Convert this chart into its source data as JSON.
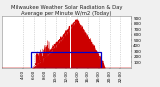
{
  "title": "Milwaukee Weather Solar Radiation & Day Average per Minute W/m2 (Today)",
  "bg_color": "#f0f0f0",
  "plot_bg": "#ffffff",
  "grid_color": "#bbbbbb",
  "bar_color": "#cc0000",
  "line_color": "#0000cc",
  "num_points": 1440,
  "sunrise": 330,
  "sunset": 1150,
  "peak_minute": 830,
  "peak_value": 870,
  "avg_value": 290,
  "avg_start": 330,
  "avg_end": 1100,
  "ylim": [
    0,
    950
  ],
  "xlim": [
    0,
    1440
  ],
  "xtick_positions": [
    240,
    360,
    480,
    600,
    720,
    840,
    960,
    1080,
    1200,
    1320
  ],
  "xtick_labels": [
    "4:00",
    "6:00",
    "8:00",
    "10:00",
    "12:00",
    "14:00",
    "16:00",
    "18:00",
    "20:00",
    "22:00"
  ],
  "ytick_positions": [
    100,
    200,
    300,
    400,
    500,
    600,
    700,
    800,
    900
  ],
  "title_fontsize": 3.8,
  "tick_fontsize": 3.0
}
